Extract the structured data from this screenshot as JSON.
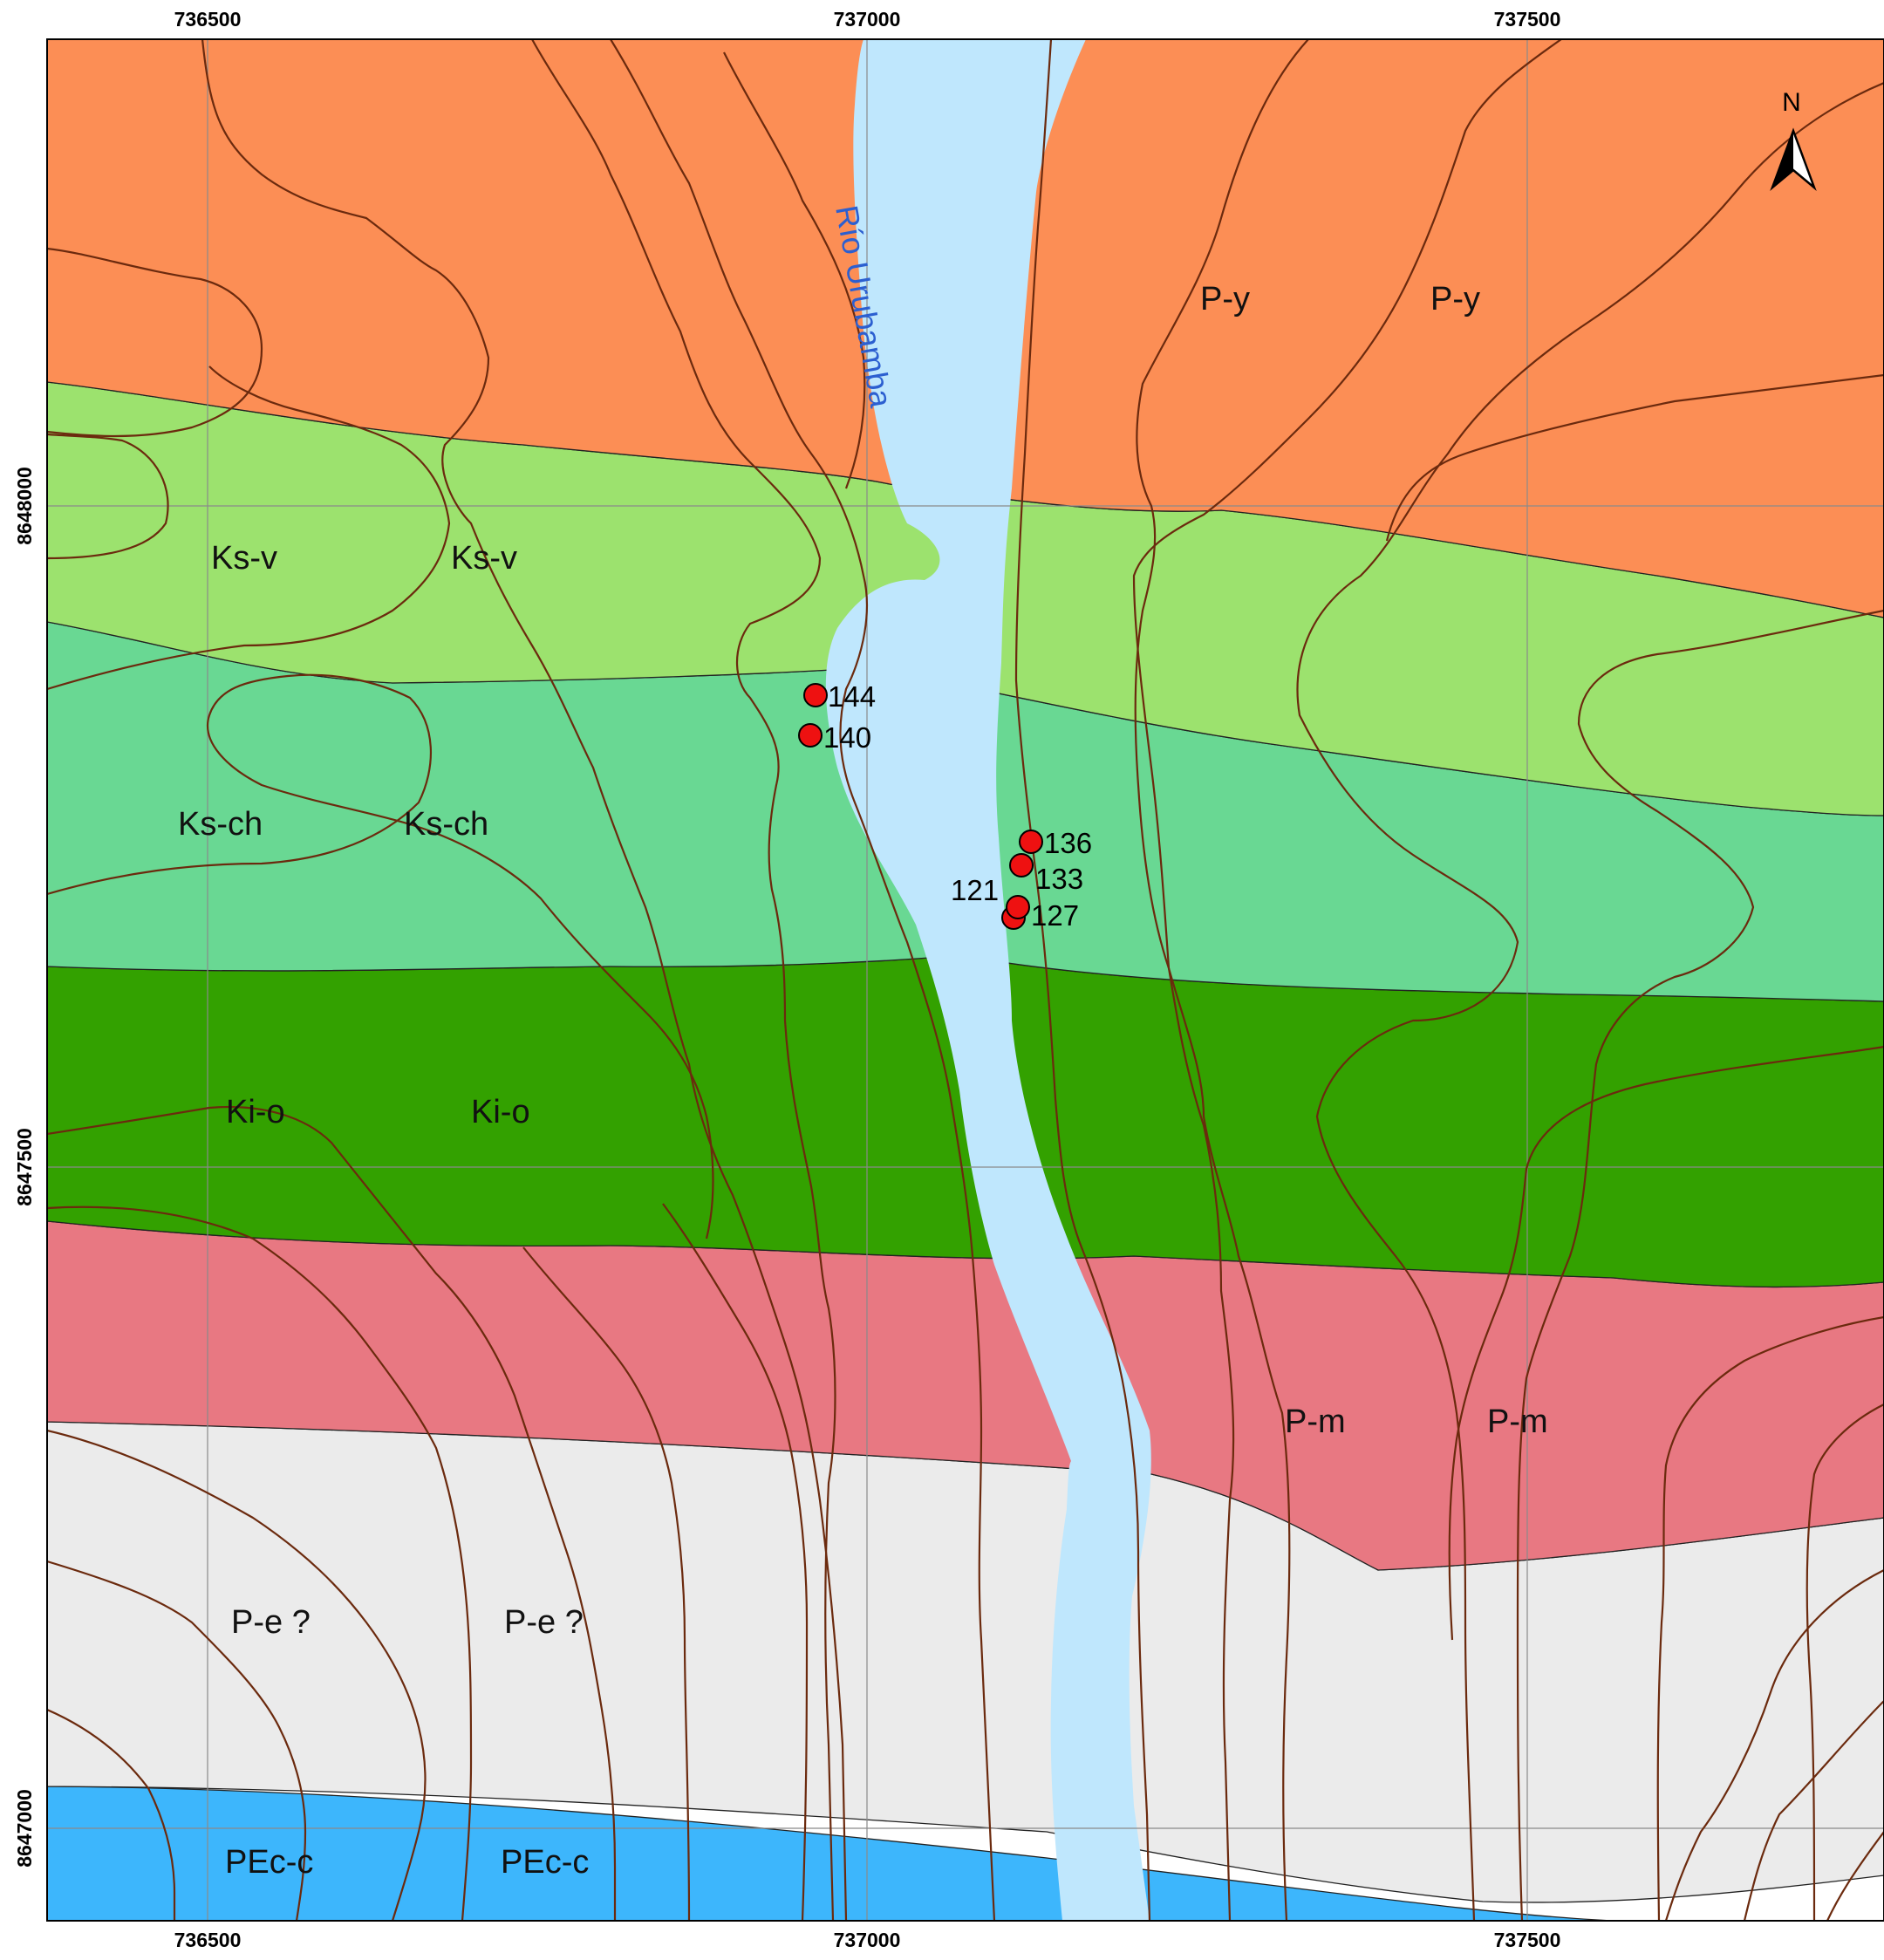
{
  "map": {
    "x_coords": [
      "736500",
      "737000",
      "737500"
    ],
    "y_coords": [
      "8648000",
      "8647500",
      "8647000"
    ],
    "river": {
      "label": "Río Urubamba",
      "color": "#bfe7fd"
    },
    "units": [
      {
        "code": "P-y",
        "color": "#fc8e55"
      },
      {
        "code": "Ks-v",
        "color": "#9ce26e"
      },
      {
        "code": "Ks-ch",
        "color": "#69d893"
      },
      {
        "code": "Ki-o",
        "color": "#33a100"
      },
      {
        "code": "P-m",
        "color": "#e87882"
      },
      {
        "code": "P-e ?",
        "color": "#ebebeb"
      },
      {
        "code": "PEc-c",
        "color": "#3db6fc"
      }
    ],
    "unit_labels": [
      "P-y",
      "P-y",
      "Ks-v",
      "Ks-v",
      "Ks-ch",
      "Ks-ch",
      "Ki-o",
      "Ki-o",
      "P-m",
      "P-m",
      "P-e ?",
      "P-e ?",
      "PEc-c",
      "PEc-c"
    ],
    "samples": [
      "144",
      "140",
      "136",
      "133",
      "121",
      "127"
    ],
    "north_arrow": "N",
    "contour_color": "#6b2a0e",
    "sample_color": "#ee1111"
  }
}
